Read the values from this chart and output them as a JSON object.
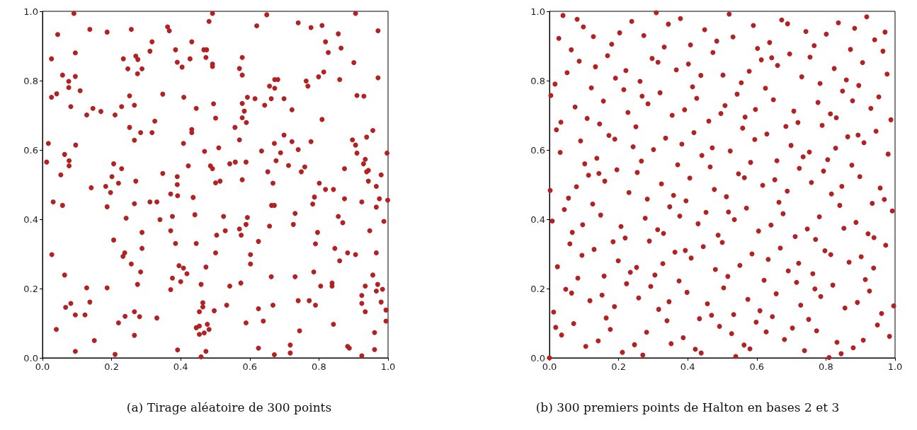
{
  "chart_data": [
    {
      "type": "scatter",
      "title": "(a) Tirage aléatoire de 300 points",
      "color": "#b22222",
      "marker": "circle",
      "xlim": [
        0,
        1
      ],
      "ylim": [
        0,
        1
      ],
      "xticks": [
        {
          "value": 0,
          "label": "0.0"
        },
        {
          "value": 0.2,
          "label": "0.2"
        },
        {
          "value": 0.4,
          "label": "0.4"
        },
        {
          "value": 0.6,
          "label": "0.6"
        },
        {
          "value": 0.8,
          "label": "0.8"
        },
        {
          "value": 1,
          "label": "1.0"
        }
      ],
      "yticks": [
        {
          "value": 0,
          "label": "0.0"
        },
        {
          "value": 0.2,
          "label": "0.2"
        },
        {
          "value": 0.4,
          "label": "0.4"
        },
        {
          "value": 0.6,
          "label": "0.6"
        },
        {
          "value": 0.8,
          "label": "0.8"
        },
        {
          "value": 1,
          "label": "1.0"
        }
      ],
      "x": [
        0.091,
        0.044,
        0.137,
        0.187,
        0.257,
        0.362,
        0.367,
        0.492,
        0.482,
        0.317,
        0.311,
        0.385,
        0.432,
        0.467,
        0.475,
        0.473,
        0.492,
        0.492,
        0.095,
        0.026,
        0.234,
        0.27,
        0.276,
        0.247,
        0.288,
        0.275,
        0.39,
        0.404,
        0.427,
        0.058,
        0.095,
        0.076,
        0.076,
        0.109,
        0.041,
        0.026,
        0.252,
        0.348,
        0.409,
        0.495,
        0.082,
        0.146,
        0.169,
        0.128,
        0.21,
        0.229,
        0.266,
        0.445,
        0.325,
        0.649,
        0.62,
        0.74,
        0.777,
        0.809,
        0.906,
        0.856,
        0.971,
        0.819,
        0.864,
        0.827,
        0.901,
        0.578,
        0.57,
        0.578,
        0.672,
        0.681,
        0.657,
        0.672,
        0.763,
        0.768,
        0.799,
        0.814,
        0.86,
        0.971,
        0.91,
        0.93,
        0.593,
        0.615,
        0.662,
        0.699,
        0.578,
        0.643,
        0.722,
        0.584,
        0.578,
        0.59,
        0.809,
        0.501,
        0.252,
        0.284,
        0.317,
        0.266,
        0.432,
        0.432,
        0.408,
        0.469,
        0.017,
        0.096,
        0.064,
        0.077,
        0.077,
        0.012,
        0.053,
        0.206,
        0.229,
        0.201,
        0.22,
        0.27,
        0.141,
        0.183,
        0.197,
        0.348,
        0.39,
        0.39,
        0.371,
        0.391,
        0.422,
        0.486,
        0.492,
        0.436,
        0.031,
        0.058,
        0.187,
        0.266,
        0.311,
        0.331,
        0.242,
        0.34,
        0.376,
        0.441,
        0.371,
        0.288,
        0.206,
        0.557,
        0.956,
        0.938,
        0.57,
        0.51,
        0.699,
        0.671,
        0.722,
        0.777,
        0.74,
        0.689,
        0.634,
        0.676,
        0.897,
        0.906,
        0.91,
        0.997,
        0.934,
        0.929,
        0.943,
        0.938,
        0.874,
        0.98,
        0.542,
        0.558,
        0.589,
        0.712,
        0.759,
        0.749,
        0.652,
        0.578,
        0.501,
        0.514,
        0.667,
        0.801,
        0.819,
        0.842,
        0.943,
        0.966,
        0.787,
        0.782,
        0.874,
        0.924,
        0.975,
        0.999,
        0.966,
        0.663,
        0.671,
        0.731,
        0.726,
        0.657,
        0.856,
        0.869,
        0.988,
        0.947,
        0.796,
        0.524,
        0.593,
        0.589,
        0.57,
        0.575,
        0.529,
        0.504,
        0.625,
        0.385,
        0.445,
        0.288,
        0.027,
        0.238,
        0.233,
        0.257,
        0.284,
        0.395,
        0.408,
        0.418,
        0.473,
        0.376,
        0.4,
        0.371,
        0.459,
        0.064,
        0.128,
        0.187,
        0.275,
        0.082,
        0.067,
        0.137,
        0.095,
        0.123,
        0.266,
        0.281,
        0.239,
        0.22,
        0.331,
        0.464,
        0.464,
        0.454,
        0.445,
        0.454,
        0.477,
        0.482,
        0.468,
        0.454,
        0.04,
        0.15,
        0.266,
        0.095,
        0.21,
        0.391,
        0.473,
        0.459,
        0.79,
        0.501,
        0.602,
        0.602,
        0.846,
        0.883,
        0.906,
        0.86,
        0.966,
        0.785,
        0.662,
        0.731,
        0.956,
        0.574,
        0.542,
        0.805,
        0.838,
        0.838,
        0.934,
        0.97,
        0.966,
        0.984,
        0.924,
        0.924,
        0.934,
        0.98,
        0.994,
        0.994,
        0.533,
        0.625,
        0.667,
        0.74,
        0.772,
        0.79,
        0.497,
        0.589,
        0.639,
        0.744,
        0.842,
        0.961,
        0.625,
        0.717,
        0.717,
        0.671,
        0.883,
        0.888,
        0.961,
        0.924
      ],
      "values": [
        0.994,
        0.933,
        0.948,
        0.94,
        0.948,
        0.955,
        0.944,
        0.994,
        0.971,
        0.912,
        0.885,
        0.889,
        0.912,
        0.889,
        0.889,
        0.867,
        0.848,
        0.841,
        0.88,
        0.863,
        0.863,
        0.871,
        0.861,
        0.834,
        0.834,
        0.82,
        0.853,
        0.839,
        0.863,
        0.816,
        0.812,
        0.798,
        0.78,
        0.771,
        0.762,
        0.752,
        0.756,
        0.761,
        0.752,
        0.733,
        0.725,
        0.72,
        0.711,
        0.701,
        0.701,
        0.725,
        0.729,
        0.72,
        0.683,
        0.99,
        0.958,
        0.967,
        0.953,
        0.959,
        0.994,
        0.935,
        0.944,
        0.912,
        0.894,
        0.881,
        0.852,
        0.867,
        0.835,
        0.816,
        0.803,
        0.803,
        0.784,
        0.778,
        0.799,
        0.784,
        0.811,
        0.825,
        0.803,
        0.808,
        0.757,
        0.755,
        0.752,
        0.748,
        0.748,
        0.748,
        0.734,
        0.729,
        0.716,
        0.712,
        0.693,
        0.679,
        0.688,
        0.692,
        0.665,
        0.65,
        0.65,
        0.628,
        0.659,
        0.65,
        0.619,
        0.596,
        0.619,
        0.614,
        0.587,
        0.569,
        0.554,
        0.565,
        0.528,
        0.56,
        0.546,
        0.523,
        0.504,
        0.51,
        0.491,
        0.495,
        0.477,
        0.532,
        0.523,
        0.5,
        0.473,
        0.468,
        0.554,
        0.554,
        0.546,
        0.463,
        0.45,
        0.44,
        0.436,
        0.445,
        0.45,
        0.45,
        0.403,
        0.399,
        0.408,
        0.413,
        0.367,
        0.362,
        0.34,
        0.665,
        0.656,
        0.637,
        0.629,
        0.606,
        0.643,
        0.619,
        0.624,
        0.624,
        0.601,
        0.592,
        0.597,
        0.569,
        0.629,
        0.614,
        0.591,
        0.591,
        0.573,
        0.56,
        0.541,
        0.537,
        0.546,
        0.528,
        0.56,
        0.565,
        0.565,
        0.555,
        0.551,
        0.537,
        0.537,
        0.514,
        0.505,
        0.51,
        0.504,
        0.504,
        0.486,
        0.486,
        0.51,
        0.495,
        0.464,
        0.444,
        0.459,
        0.45,
        0.459,
        0.455,
        0.435,
        0.44,
        0.44,
        0.417,
        0.385,
        0.38,
        0.408,
        0.39,
        0.394,
        0.367,
        0.362,
        0.408,
        0.405,
        0.385,
        0.372,
        0.354,
        0.367,
        0.354,
        0.336,
        0.33,
        0.33,
        0.316,
        0.298,
        0.303,
        0.293,
        0.271,
        0.248,
        0.266,
        0.259,
        0.243,
        0.262,
        0.23,
        0.22,
        0.197,
        0.212,
        0.239,
        0.202,
        0.202,
        0.212,
        0.157,
        0.146,
        0.161,
        0.124,
        0.124,
        0.133,
        0.119,
        0.12,
        0.101,
        0.115,
        0.159,
        0.147,
        0.133,
        0.087,
        0.092,
        0.097,
        0.082,
        0.072,
        0.068,
        0.082,
        0.05,
        0.065,
        0.019,
        0.01,
        0.023,
        0.019,
        0.003,
        0.329,
        0.303,
        0.298,
        0.271,
        0.316,
        0.303,
        0.298,
        0.28,
        0.303,
        0.248,
        0.234,
        0.234,
        0.239,
        0.216,
        0.207,
        0.207,
        0.216,
        0.207,
        0.207,
        0.212,
        0.193,
        0.198,
        0.18,
        0.157,
        0.133,
        0.161,
        0.138,
        0.106,
        0.152,
        0.142,
        0.152,
        0.165,
        0.165,
        0.152,
        0.136,
        0.101,
        0.106,
        0.078,
        0.097,
        0.073,
        0.028,
        0.037,
        0.014,
        0.009,
        0.033,
        0.028,
        0.024,
        0.006
      ]
    },
    {
      "type": "scatter",
      "title": "(b) 300 premiers points de Halton en bases 2 et 3",
      "color": "#b22222",
      "marker": "circle",
      "xlim": [
        0,
        1
      ],
      "ylim": [
        0,
        1
      ],
      "xticks": [
        {
          "value": 0,
          "label": "0.0"
        },
        {
          "value": 0.2,
          "label": "0.2"
        },
        {
          "value": 0.4,
          "label": "0.4"
        },
        {
          "value": 0.6,
          "label": "0.6"
        },
        {
          "value": 0.8,
          "label": "0.8"
        },
        {
          "value": 1,
          "label": "1.0"
        }
      ],
      "yticks": [
        {
          "value": 0,
          "label": "0.0"
        },
        {
          "value": 0.2,
          "label": "0.2"
        },
        {
          "value": 0.4,
          "label": "0.4"
        },
        {
          "value": 0.6,
          "label": "0.6"
        },
        {
          "value": 0.8,
          "label": "0.8"
        },
        {
          "value": 1,
          "label": "1.0"
        }
      ],
      "x": [
        0,
        0.5,
        0.25,
        0.75,
        0.125,
        0.625,
        0.375,
        0.875,
        0.063,
        0.563,
        0.313,
        0.813,
        0.188,
        0.688,
        0.438,
        0.938,
        0.031,
        0.531,
        0.281,
        0.781,
        0.156,
        0.656,
        0.406,
        0.906,
        0.094,
        0.594,
        0.344,
        0.844,
        0.219,
        0.719,
        0.469,
        0.969,
        0.016,
        0.516,
        0.266,
        0.766,
        0.141,
        0.641,
        0.391,
        0.891,
        0.078,
        0.578,
        0.328,
        0.828,
        0.203,
        0.703,
        0.453,
        0.953,
        0.047,
        0.547,
        0.297,
        0.797,
        0.172,
        0.672,
        0.422,
        0.922,
        0.109,
        0.609,
        0.359,
        0.859,
        0.234,
        0.734,
        0.484,
        0.984,
        0.008,
        0.508,
        0.258,
        0.758,
        0.133,
        0.633,
        0.383,
        0.883,
        0.07,
        0.57,
        0.32,
        0.82,
        0.195,
        0.695,
        0.445,
        0.945,
        0.039,
        0.539,
        0.289,
        0.789,
        0.164,
        0.664,
        0.414,
        0.914,
        0.102,
        0.602,
        0.352,
        0.852,
        0.227,
        0.727,
        0.477,
        0.977,
        0.023,
        0.523,
        0.273,
        0.773,
        0.148,
        0.648,
        0.398,
        0.898,
        0.086,
        0.586,
        0.336,
        0.836,
        0.211,
        0.711,
        0.461,
        0.961,
        0.055,
        0.555,
        0.305,
        0.805,
        0.18,
        0.68,
        0.43,
        0.93,
        0.117,
        0.617,
        0.367,
        0.867,
        0.242,
        0.742,
        0.492,
        0.992,
        0.004,
        0.504,
        0.254,
        0.754,
        0.129,
        0.629,
        0.379,
        0.879,
        0.066,
        0.566,
        0.316,
        0.816,
        0.191,
        0.691,
        0.441,
        0.941,
        0.035,
        0.535,
        0.285,
        0.785,
        0.16,
        0.66,
        0.41,
        0.91,
        0.098,
        0.598,
        0.348,
        0.848,
        0.223,
        0.723,
        0.473,
        0.973,
        0.02,
        0.52,
        0.27,
        0.77,
        0.145,
        0.645,
        0.395,
        0.895,
        0.082,
        0.582,
        0.332,
        0.832,
        0.207,
        0.707,
        0.457,
        0.957,
        0.051,
        0.551,
        0.301,
        0.801,
        0.176,
        0.676,
        0.426,
        0.926,
        0.113,
        0.613,
        0.363,
        0.863,
        0.238,
        0.738,
        0.488,
        0.988,
        0.012,
        0.512,
        0.262,
        0.762,
        0.137,
        0.637,
        0.387,
        0.887,
        0.074,
        0.574,
        0.324,
        0.824,
        0.199,
        0.699,
        0.449,
        0.949,
        0.043,
        0.543,
        0.293,
        0.793,
        0.168,
        0.668,
        0.418,
        0.918,
        0.105,
        0.605,
        0.355,
        0.855,
        0.23,
        0.73,
        0.48,
        0.98,
        0.027,
        0.527,
        0.277,
        0.777,
        0.152,
        0.652,
        0.402,
        0.902,
        0.09,
        0.59,
        0.34,
        0.84,
        0.215,
        0.715,
        0.465,
        0.965,
        0.059,
        0.559,
        0.309,
        0.809,
        0.184,
        0.684,
        0.434,
        0.934,
        0.121,
        0.621,
        0.371,
        0.871,
        0.246,
        0.746,
        0.496,
        0.996,
        0.002,
        0.502,
        0.252,
        0.752,
        0.127,
        0.627,
        0.377,
        0.877,
        0.064,
        0.564,
        0.314,
        0.814,
        0.189,
        0.689,
        0.439,
        0.939,
        0.033,
        0.533,
        0.283,
        0.783,
        0.158,
        0.658,
        0.408,
        0.908,
        0.096,
        0.596,
        0.346,
        0.846,
        0.221,
        0.721,
        0.471,
        0.971,
        0.018,
        0.518,
        0.268,
        0.768,
        0.143,
        0.643,
        0.393,
        0.893,
        0.08,
        0.58,
        0.33,
        0.83
      ],
      "values": [
        0,
        0.333,
        0.667,
        0.111,
        0.444,
        0.778,
        0.222,
        0.556,
        0.889,
        0.037,
        0.37,
        0.704,
        0.148,
        0.481,
        0.815,
        0.259,
        0.593,
        0.926,
        0.074,
        0.407,
        0.741,
        0.185,
        0.519,
        0.852,
        0.296,
        0.63,
        0.963,
        0.012,
        0.346,
        0.679,
        0.123,
        0.457,
        0.79,
        0.235,
        0.568,
        0.901,
        0.049,
        0.383,
        0.716,
        0.16,
        0.494,
        0.827,
        0.272,
        0.605,
        0.938,
        0.086,
        0.42,
        0.753,
        0.198,
        0.531,
        0.864,
        0.309,
        0.642,
        0.975,
        0.025,
        0.358,
        0.691,
        0.136,
        0.469,
        0.802,
        0.247,
        0.58,
        0.914,
        0.062,
        0.395,
        0.728,
        0.173,
        0.506,
        0.84,
        0.284,
        0.617,
        0.951,
        0.099,
        0.432,
        0.765,
        0.21,
        0.543,
        0.877,
        0.321,
        0.654,
        0.988,
        0.004,
        0.337,
        0.671,
        0.115,
        0.449,
        0.782,
        0.226,
        0.56,
        0.893,
        0.041,
        0.374,
        0.708,
        0.152,
        0.486,
        0.819,
        0.263,
        0.597,
        0.93,
        0.078,
        0.412,
        0.745,
        0.189,
        0.523,
        0.856,
        0.3,
        0.634,
        0.967,
        0.016,
        0.35,
        0.683,
        0.128,
        0.461,
        0.794,
        0.239,
        0.572,
        0.905,
        0.053,
        0.387,
        0.72,
        0.165,
        0.498,
        0.831,
        0.276,
        0.609,
        0.942,
        0.091,
        0.424,
        0.757,
        0.202,
        0.535,
        0.868,
        0.313,
        0.646,
        0.979,
        0.029,
        0.362,
        0.695,
        0.14,
        0.473,
        0.807,
        0.251,
        0.584,
        0.918,
        0.066,
        0.399,
        0.733,
        0.177,
        0.51,
        0.844,
        0.288,
        0.621,
        0.955,
        0.103,
        0.436,
        0.77,
        0.214,
        0.547,
        0.881,
        0.325,
        0.658,
        0.992,
        0.008,
        0.342,
        0.675,
        0.119,
        0.453,
        0.786,
        0.23,
        0.564,
        0.897,
        0.045,
        0.379,
        0.712,
        0.156,
        0.49,
        0.823,
        0.267,
        0.601,
        0.934,
        0.082,
        0.416,
        0.749,
        0.193,
        0.527,
        0.86,
        0.305,
        0.638,
        0.971,
        0.021,
        0.354,
        0.687,
        0.132,
        0.465,
        0.798,
        0.243,
        0.576,
        0.91,
        0.058,
        0.391,
        0.724,
        0.169,
        0.502,
        0.835,
        0.28,
        0.613,
        0.947,
        0.095,
        0.428,
        0.761,
        0.206,
        0.539,
        0.872,
        0.317,
        0.65,
        0.984,
        0.033,
        0.366,
        0.7,
        0.144,
        0.477,
        0.811,
        0.255,
        0.588,
        0.922,
        0.07,
        0.403,
        0.737,
        0.181,
        0.514,
        0.848,
        0.292,
        0.626,
        0.959,
        0.107,
        0.44,
        0.774,
        0.218,
        0.551,
        0.885,
        0.329,
        0.663,
        0.996,
        0.001,
        0.335,
        0.668,
        0.113,
        0.446,
        0.779,
        0.224,
        0.557,
        0.89,
        0.038,
        0.372,
        0.705,
        0.15,
        0.483,
        0.816,
        0.261,
        0.594,
        0.927,
        0.075,
        0.409,
        0.742,
        0.187,
        0.52,
        0.853,
        0.298,
        0.631,
        0.964,
        0.014,
        0.347,
        0.68,
        0.125,
        0.458,
        0.792,
        0.236,
        0.569,
        0.903,
        0.051,
        0.384,
        0.717,
        0.162,
        0.495,
        0.829,
        0.273,
        0.606,
        0.94,
        0.088,
        0.421,
        0.755,
        0.199,
        0.532,
        0.866,
        0.31,
        0.643,
        0.977,
        0.026,
        0.359,
        0.693
      ]
    }
  ]
}
